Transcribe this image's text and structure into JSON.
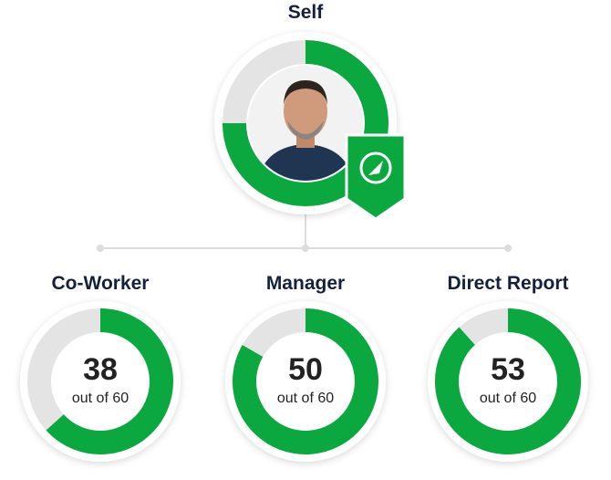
{
  "self": {
    "label": "Self",
    "score": 45,
    "max": 60
  },
  "reports": [
    {
      "label": "Co-Worker",
      "score": 38,
      "max": 60,
      "caption": "out of 60"
    },
    {
      "label": "Manager",
      "score": 50,
      "max": 60,
      "caption": "out of 60"
    },
    {
      "label": "Direct Report",
      "score": 53,
      "max": 60,
      "caption": "out of 60"
    }
  ],
  "colors": {
    "filled": "#0aa83f",
    "empty": "#e4e4e4"
  }
}
